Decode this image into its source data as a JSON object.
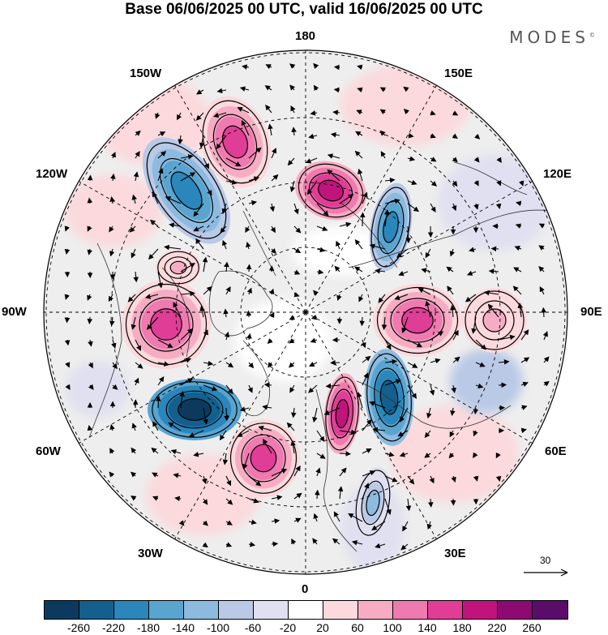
{
  "title": "Base 06/06/2025 00 UTC, valid 16/06/2025 00 UTC",
  "brand": "MODES",
  "brand_mark": "©",
  "map": {
    "projection": "north polar stereographic",
    "longitude_labels": [
      "180",
      "150E",
      "120E",
      "90E",
      "60E",
      "30E",
      "0",
      "30W",
      "60W",
      "90W",
      "120W",
      "150W"
    ],
    "latitude_circles": "dashed",
    "field_description": "shaded anomaly with contours and wind vectors",
    "reference_vector": "30"
  },
  "colorbar": {
    "labels": [
      "-260",
      "-220",
      "-180",
      "-140",
      "-100",
      "-60",
      "-20",
      "20",
      "60",
      "100",
      "140",
      "180",
      "220",
      "260"
    ],
    "colors": [
      "#0b3a5e",
      "#135f8e",
      "#2a86bb",
      "#5aa5d0",
      "#8dbbe0",
      "#b9c9e6",
      "#e0e0f0",
      "#ffffff",
      "#fbd9dc",
      "#f6adc4",
      "#ef7ab0",
      "#e03d96",
      "#c0147c",
      "#8c0a72",
      "#5a0c6a"
    ]
  }
}
